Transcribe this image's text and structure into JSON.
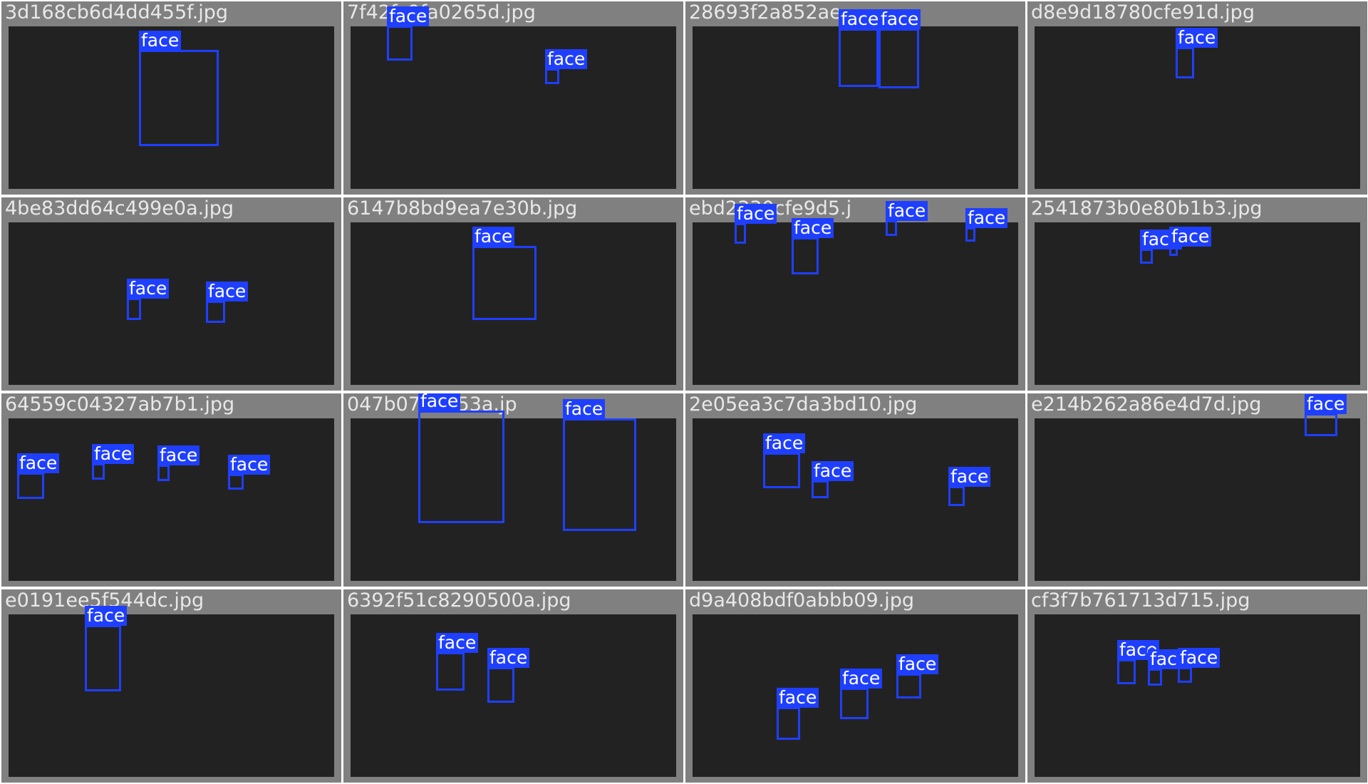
{
  "grid": {
    "tiles": [
      {
        "filename": "3d168cb6d4dd455f.jpg",
        "labels": [
          "face"
        ]
      },
      {
        "filename": "7f42fc9fa0265d.jpg",
        "labels": [
          "face",
          "face"
        ]
      },
      {
        "filename": "28693f2a852ae",
        "labels": [
          "face",
          "face"
        ]
      },
      {
        "filename": "d8e9d18780cfe91d.jpg",
        "labels": [
          "face"
        ]
      },
      {
        "filename": "4be83dd64c499e0a.jpg",
        "labels": [
          "face",
          "face"
        ]
      },
      {
        "filename": "6147b8bd9ea7e30b.jpg",
        "labels": [
          "face"
        ]
      },
      {
        "filename": "ebd2330cfe9d5.j",
        "labels": [
          "face",
          "face",
          "face",
          "face"
        ]
      },
      {
        "filename": "2541873b0e80b1b3.jpg",
        "labels": [
          "face",
          "face"
        ]
      },
      {
        "filename": "64559c04327ab7b1.jpg",
        "labels": [
          "face",
          "face",
          "face",
          "face"
        ]
      },
      {
        "filename": "047b076b853a.jp",
        "labels": [
          "face",
          "face"
        ]
      },
      {
        "filename": "2e05ea3c7da3bd10.jpg",
        "labels": [
          "face",
          "face",
          "face"
        ]
      },
      {
        "filename": "e214b262a86e4d7d.jpg",
        "labels": [
          "face"
        ]
      },
      {
        "filename": "e0191ee5f544dc.jpg",
        "labels": [
          "face"
        ]
      },
      {
        "filename": "6392f51c8290500a.jpg",
        "labels": [
          "face",
          "face"
        ]
      },
      {
        "filename": "d9a408bdf0abbb09.jpg",
        "labels": [
          "face",
          "face",
          "face"
        ]
      },
      {
        "filename": "cf3f7b761713d715.jpg",
        "labels": [
          "face",
          "face",
          "face"
        ]
      }
    ]
  },
  "colors": {
    "tile_bg": "#808080",
    "box": "#1f3fff",
    "label_text": "#ffffff",
    "filename_text": "#e8e8e8"
  }
}
